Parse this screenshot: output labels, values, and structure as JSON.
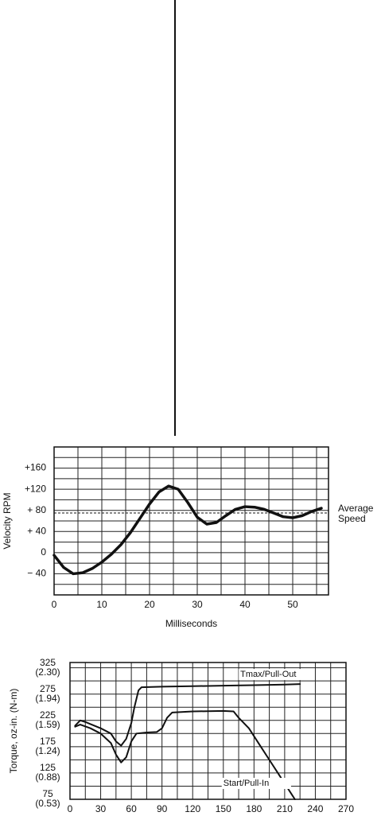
{
  "chart_data": [
    {
      "type": "line",
      "y_label": "Velocity RPM",
      "x_label": "Milliseconds",
      "xlim": [
        0,
        57.5
      ],
      "xticks": [
        0,
        10,
        20,
        30,
        40,
        50
      ],
      "ylim": [
        -80,
        200
      ],
      "yticks": [
        {
          "value": -40,
          "label": "− 40"
        },
        0,
        {
          "value": 40,
          "label": "+ 40"
        },
        {
          "value": 80,
          "label": "+ 80"
        },
        {
          "value": 120,
          "label": "+120"
        },
        {
          "value": 160,
          "label": "+160"
        }
      ],
      "grid": true,
      "reference_line": {
        "value": 75,
        "label": [
          "Average",
          "Speed"
        ]
      },
      "series": [
        {
          "color": "#111111",
          "x": [
            0,
            2,
            4,
            6,
            8,
            10,
            12,
            14,
            16,
            18,
            20,
            22,
            24,
            26,
            28,
            30,
            32,
            34,
            36,
            38,
            40,
            42,
            44,
            46,
            48,
            50,
            52,
            54,
            56
          ],
          "values": [
            -5,
            -28,
            -40,
            -38,
            -30,
            -18,
            -3,
            15,
            38,
            65,
            92,
            115,
            126,
            120,
            95,
            67,
            54,
            57,
            70,
            82,
            87,
            86,
            82,
            75,
            68,
            66,
            70,
            78,
            84
          ]
        }
      ]
    },
    {
      "type": "line",
      "y_label": "Torque, oz-in. (N-m)",
      "xlim": [
        0,
        270
      ],
      "xticks": [
        0,
        30,
        60,
        90,
        120,
        150,
        180,
        210,
        240,
        270
      ],
      "ylim": [
        75,
        335
      ],
      "yticks": [
        75,
        125,
        175,
        225,
        275,
        325
      ],
      "ytick_metric": [
        "(0.53)",
        "(0.88)",
        "(1.24)",
        "(1.59)",
        "(1.94)",
        "(2.30)"
      ],
      "grid": true,
      "series": [
        {
          "name": "Tmax/Pull-Out",
          "color": "#111111",
          "x": [
            5,
            10,
            15,
            20,
            30,
            40,
            45,
            50,
            55,
            60,
            63,
            67,
            70,
            90,
            120,
            150,
            180,
            210,
            225
          ],
          "values": [
            215,
            225,
            222,
            218,
            210,
            200,
            185,
            177,
            190,
            220,
            250,
            282,
            288,
            289,
            290,
            291,
            292,
            293,
            294
          ]
        },
        {
          "name": "Start/Pull-In",
          "color": "#111111",
          "x": [
            5,
            10,
            20,
            30,
            40,
            45,
            50,
            55,
            60,
            65,
            75,
            85,
            90,
            95,
            100,
            120,
            150,
            160,
            165,
            175,
            185,
            195,
            205,
            215,
            220
          ],
          "values": [
            213,
            217,
            210,
            200,
            182,
            160,
            145,
            155,
            185,
            200,
            202,
            203,
            210,
            230,
            240,
            242,
            243,
            242,
            230,
            210,
            180,
            150,
            120,
            90,
            75
          ]
        }
      ]
    }
  ]
}
